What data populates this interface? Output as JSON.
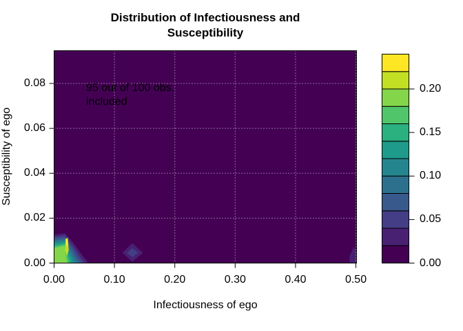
{
  "figure": {
    "title_line1": "Distribution of Infectiousness and",
    "title_line2": "Susceptibility",
    "annotation_line1": "95 out of 100 obs.",
    "annotation_line2": "included",
    "background_color": "#ffffff"
  },
  "chart_data": {
    "type": "heatmap",
    "subtype": "filled-contour-density",
    "title": "Distribution of Infectiousness and Susceptibility",
    "xlabel": "Infectiousness of ego",
    "ylabel": "Susceptibility of ego",
    "annotation": "95 out of 100 obs. included",
    "xlim": [
      0,
      0.5011
    ],
    "ylim": [
      0,
      0.0946
    ],
    "x_tick_labels": [
      "0.00",
      "0.10",
      "0.20",
      "0.30",
      "0.40",
      "0.50"
    ],
    "x_tick_values": [
      0,
      0.1,
      0.2,
      0.3,
      0.4,
      0.5
    ],
    "y_tick_labels": [
      "0.00",
      "0.02",
      "0.04",
      "0.06",
      "0.08"
    ],
    "y_tick_values": [
      0,
      0.02,
      0.04,
      0.06,
      0.08
    ],
    "grid": "dotted-white-at-every-tick",
    "grid_color": "#ffffff",
    "grid_opacity": 0.8,
    "base_level_color": "#440154",
    "legend": {
      "position": "right",
      "value_range": [
        0,
        0.24
      ],
      "cell_step": 0.02,
      "n_cells": 12,
      "tick_labels": [
        "0.00",
        "0.05",
        "0.10",
        "0.15",
        "0.20"
      ],
      "tick_values": [
        0,
        0.05,
        0.1,
        0.15,
        0.2
      ],
      "colors_bottom_to_top": [
        "#440154",
        "#482173",
        "#433E85",
        "#38598C",
        "#2D708E",
        "#25858E",
        "#1E9B8A",
        "#2BB07F",
        "#51C56A",
        "#85D54A",
        "#C2DF23",
        "#FDE725"
      ]
    },
    "features": [
      {
        "name": "main-density-peak",
        "x": 0.021,
        "y": 0.008,
        "peak_density": 0.23
      },
      {
        "name": "secondary-bump",
        "x": 0.13,
        "y": 0.0046,
        "peak_density": 0.05
      },
      {
        "name": "right-edge-bump",
        "x": 0.5,
        "y": 0.004,
        "peak_density": 0.03
      }
    ],
    "contours": [
      {
        "level": 0.02,
        "color": "#482173",
        "points": [
          [
            0,
            0.0126
          ],
          [
            0.018,
            0.0133
          ],
          [
            0.032,
            0.009
          ],
          [
            0.048,
            0.003
          ],
          [
            0.057,
            0
          ],
          [
            0,
            0
          ]
        ]
      },
      {
        "level": 0.04,
        "color": "#433E85",
        "points": [
          [
            0,
            0.0117
          ],
          [
            0.018,
            0.0124
          ],
          [
            0.03,
            0.0081
          ],
          [
            0.044,
            0.0024
          ],
          [
            0.0515,
            0
          ],
          [
            0,
            0
          ]
        ]
      },
      {
        "level": 0.06,
        "color": "#38598C",
        "points": [
          [
            0,
            0.0109
          ],
          [
            0.018,
            0.0116
          ],
          [
            0.0285,
            0.0073
          ],
          [
            0.0405,
            0.0019
          ],
          [
            0.0468,
            0
          ],
          [
            0,
            0
          ]
        ]
      },
      {
        "level": 0.08,
        "color": "#2D708E",
        "points": [
          [
            0,
            0.0101
          ],
          [
            0.018,
            0.0109
          ],
          [
            0.0268,
            0.0065
          ],
          [
            0.0372,
            0.0014
          ],
          [
            0.0424,
            0
          ],
          [
            0,
            0
          ]
        ]
      },
      {
        "level": 0.1,
        "color": "#25858E",
        "points": [
          [
            0,
            0.0094
          ],
          [
            0.018,
            0.0102
          ],
          [
            0.0252,
            0.0058
          ],
          [
            0.034,
            0.001
          ],
          [
            0.0382,
            0
          ],
          [
            0,
            0
          ]
        ]
      },
      {
        "level": 0.12,
        "color": "#1E9B8A",
        "points": [
          [
            0,
            0.0087
          ],
          [
            0.018,
            0.0095
          ],
          [
            0.0236,
            0.0051
          ],
          [
            0.0309,
            0.0006
          ],
          [
            0.0342,
            0
          ],
          [
            0,
            0
          ]
        ]
      },
      {
        "level": 0.14,
        "color": "#2BB07F",
        "points": [
          [
            0,
            0.008
          ],
          [
            0.018,
            0.0089
          ],
          [
            0.0221,
            0.0044
          ],
          [
            0.0279,
            0.0003
          ],
          [
            0.0304,
            0
          ],
          [
            0,
            0
          ]
        ]
      },
      {
        "level": 0.16,
        "color": "#51C56A",
        "points": [
          [
            0,
            0.0073
          ],
          [
            0.018,
            0.0083
          ],
          [
            0.0207,
            0.0038
          ],
          [
            0.025,
            0.0001
          ],
          [
            0.0268,
            0
          ],
          [
            0,
            0
          ]
        ]
      },
      {
        "level": 0.18,
        "color": "#85D54A",
        "points": [
          [
            0,
            0.0066
          ],
          [
            0.0175,
            0.0077
          ],
          [
            0.0193,
            0.0032
          ],
          [
            0.0222,
            0
          ],
          [
            0,
            0
          ]
        ]
      },
      {
        "level": 0.2,
        "color": "#C2DF23",
        "points": [
          [
            0.019,
            0.0108
          ],
          [
            0.0228,
            0.0112
          ],
          [
            0.0242,
            0.0058
          ],
          [
            0.0212,
            0.003
          ],
          [
            0.0182,
            0.0058
          ]
        ]
      },
      {
        "level": 0.22,
        "color": "#FDE725",
        "points": [
          [
            0.0198,
            0.0106
          ],
          [
            0.0224,
            0.0108
          ],
          [
            0.023,
            0.0078
          ],
          [
            0.0202,
            0.0076
          ]
        ]
      },
      {
        "level": 0.02,
        "color": "#482173",
        "points": [
          [
            0.113,
            0.0046
          ],
          [
            0.1298,
            0.0088
          ],
          [
            0.147,
            0.0046
          ],
          [
            0.1298,
            0.0006
          ]
        ]
      },
      {
        "level": 0.04,
        "color": "#433E85",
        "points": [
          [
            0.1207,
            0.0046
          ],
          [
            0.1298,
            0.0067
          ],
          [
            0.1389,
            0.0046
          ],
          [
            0.1298,
            0.0026
          ]
        ]
      },
      {
        "level": 0.02,
        "color": "#482173",
        "points": [
          [
            0.4895,
            0
          ],
          [
            0.4895,
            0.0032
          ],
          [
            0.4966,
            0.0072
          ],
          [
            0.5011,
            0.0052
          ],
          [
            0.5011,
            0
          ]
        ]
      }
    ]
  }
}
